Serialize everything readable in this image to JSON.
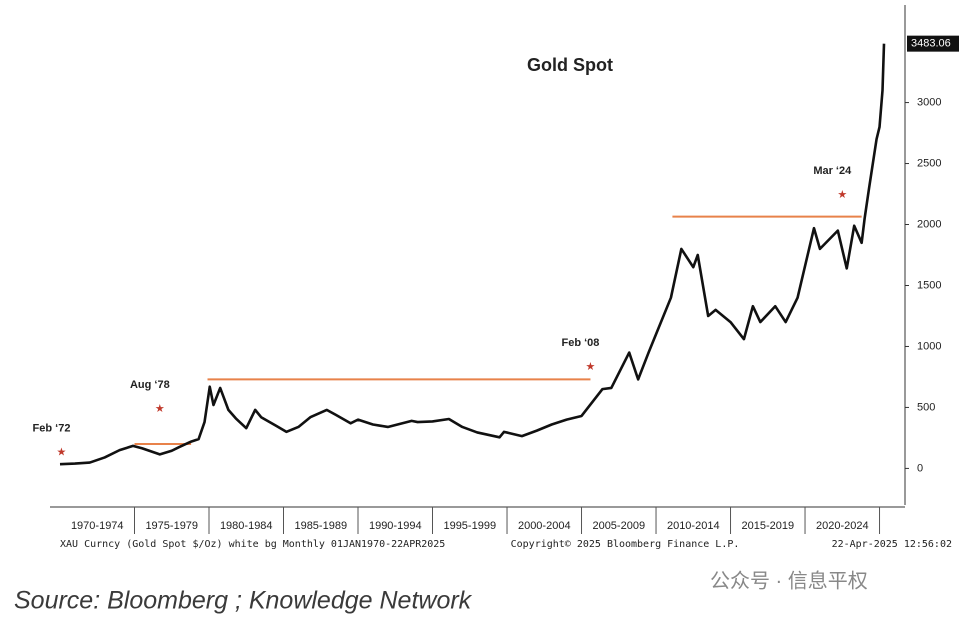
{
  "chart_data": {
    "type": "line",
    "title": "Gold Spot",
    "series": [
      {
        "name": "XAU Curncy",
        "color": "#111111",
        "x": [
          1970,
          1971,
          1972,
          1973,
          1974,
          1974.9,
          1975.5,
          1976.7,
          1977.5,
          1978,
          1978.8,
          1979.3,
          1979.7,
          1980.05,
          1980.3,
          1980.75,
          1981.3,
          1981.8,
          1982.5,
          1983.1,
          1983.5,
          1984.5,
          1985.2,
          1986,
          1986.8,
          1987.9,
          1988.5,
          1989.5,
          1990,
          1991,
          1992,
          1993.6,
          1994,
          1995,
          1996.1,
          1997,
          1998,
          1999.5,
          1999.8,
          2001,
          2002,
          2003,
          2004,
          2005,
          2006.4,
          2007,
          2008.2,
          2008.8,
          2009.5,
          2010,
          2011,
          2011.7,
          2012.5,
          2012.8,
          2013.5,
          2014,
          2015,
          2015.9,
          2016.5,
          2017,
          2018,
          2018.7,
          2019.5,
          2020.6,
          2021,
          2022.2,
          2022.8,
          2023.3,
          2023.8,
          2024,
          2024.3,
          2024.8,
          2025,
          2025.2,
          2025.3
        ],
        "values": [
          35,
          40,
          48,
          90,
          150,
          185,
          165,
          115,
          145,
          175,
          220,
          240,
          380,
          670,
          520,
          660,
          480,
          410,
          330,
          480,
          420,
          350,
          300,
          340,
          420,
          480,
          440,
          370,
          400,
          360,
          340,
          390,
          380,
          385,
          405,
          340,
          295,
          255,
          300,
          265,
          310,
          360,
          400,
          430,
          650,
          660,
          950,
          730,
          950,
          1100,
          1400,
          1800,
          1650,
          1750,
          1250,
          1300,
          1200,
          1060,
          1330,
          1200,
          1330,
          1200,
          1400,
          1970,
          1800,
          1950,
          1640,
          1990,
          1850,
          2050,
          2300,
          2700,
          2800,
          3100,
          3483.06
        ]
      }
    ],
    "xlim": [
      1970,
      2025.3
    ],
    "xticks": [
      {
        "value": 1972.5,
        "label": "1970-1974"
      },
      {
        "value": 1977.5,
        "label": "1975-1979"
      },
      {
        "value": 1982.5,
        "label": "1980-1984"
      },
      {
        "value": 1987.5,
        "label": "1985-1989"
      },
      {
        "value": 1992.5,
        "label": "1990-1994"
      },
      {
        "value": 1997.5,
        "label": "1995-1999"
      },
      {
        "value": 2002.5,
        "label": "2000-2004"
      },
      {
        "value": 2007.5,
        "label": "2005-2009"
      },
      {
        "value": 2012.5,
        "label": "2010-2014"
      },
      {
        "value": 2017.5,
        "label": "2015-2019"
      },
      {
        "value": 2022.5,
        "label": "2020-2024"
      }
    ],
    "ylim": [
      -300,
      3800
    ],
    "yticks": [
      0,
      500,
      1000,
      1500,
      2000,
      2500,
      3000
    ],
    "reference_lines": [
      {
        "x": [
          1975.0,
          1978.8
        ],
        "y": 200
      },
      {
        "x": [
          1979.9,
          2005.6
        ],
        "y": 730
      },
      {
        "x": [
          2011.1,
          2023.8
        ],
        "y": 2065
      }
    ],
    "reference_color": "#e8824a",
    "annotations": [
      {
        "text": "Feb ‘72",
        "x": 1970.1,
        "y": 130
      },
      {
        "text": "Aug ‘78",
        "x": 1976.7,
        "y": 485
      },
      {
        "text": "Feb ‘08",
        "x": 2005.6,
        "y": 830
      },
      {
        "text": "Mar ‘24",
        "x": 2022.5,
        "y": 2240
      }
    ],
    "star_color": "#c0392b",
    "footer_left": "XAU Curncy (Gold Spot  $/Oz) white bg  Monthly 01JAN1970-22APR2025",
    "footer_center": "Copyright© 2025 Bloomberg Finance L.P.",
    "footer_right": "22-Apr-2025 12:56:02",
    "source": "Source: Bloomberg ; Knowledge Network",
    "watermark": "公众号 · 信息平权"
  }
}
